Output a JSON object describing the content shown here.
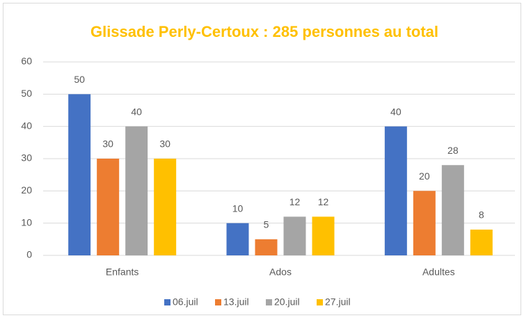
{
  "chart_data": {
    "type": "bar",
    "title": "Glissade Perly-Certoux : 285 personnes au total",
    "categories": [
      "Enfants",
      "Ados",
      "Adultes"
    ],
    "series": [
      {
        "name": "06.juil",
        "color": "#4472c4",
        "values": [
          50,
          10,
          40
        ]
      },
      {
        "name": "13.juil",
        "color": "#ed7d31",
        "values": [
          30,
          5,
          20
        ]
      },
      {
        "name": "20.juil",
        "color": "#a5a5a5",
        "values": [
          40,
          12,
          28
        ]
      },
      {
        "name": "27.juil",
        "color": "#ffc000",
        "values": [
          30,
          12,
          8
        ]
      }
    ],
    "ylim": [
      0,
      60
    ],
    "yticks": [
      0,
      10,
      20,
      30,
      40,
      50,
      60
    ],
    "grid": true,
    "legend": "bottom"
  }
}
